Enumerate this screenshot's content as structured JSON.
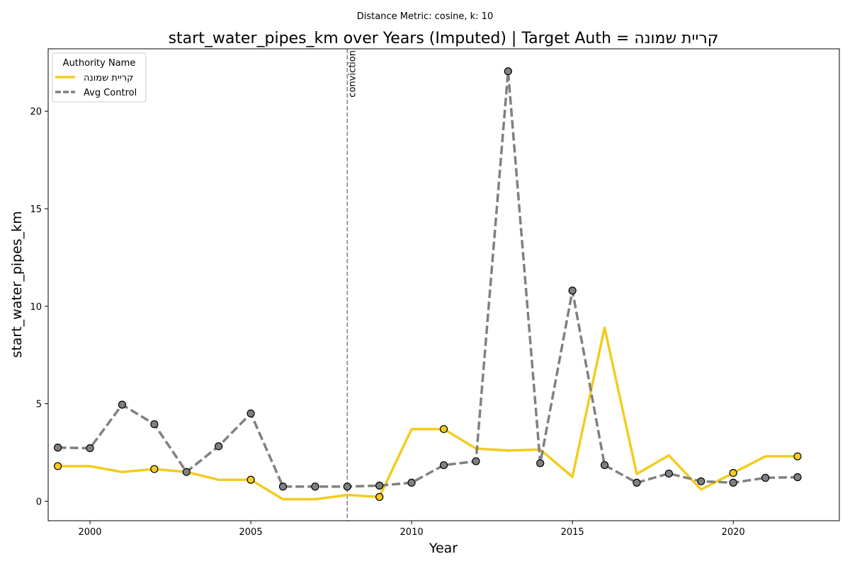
{
  "chart_data": {
    "type": "line",
    "suptitle": "Distance Metric: cosine, k: 10",
    "title": "start_water_pipes_km over Years (Imputed) | Target Auth = קריית שמונה",
    "xlabel": "Year",
    "ylabel": "start_water_pipes_km",
    "xlim": [
      1998.7,
      2023.3
    ],
    "ylim": [
      -1.0,
      23.2
    ],
    "x_ticks": [
      2000,
      2005,
      2010,
      2015,
      2020
    ],
    "y_ticks": [
      0,
      5,
      10,
      15,
      20
    ],
    "grid": false,
    "x": [
      1999,
      2000,
      2001,
      2002,
      2003,
      2004,
      2005,
      2006,
      2007,
      2008,
      2009,
      2010,
      2011,
      2012,
      2013,
      2014,
      2015,
      2016,
      2017,
      2018,
      2019,
      2020,
      2021,
      2022
    ],
    "series": [
      {
        "name": "קריית שמונה",
        "color": "#f2cc1f",
        "style": "solid",
        "values": [
          1.8,
          1.8,
          1.5,
          1.65,
          1.5,
          1.1,
          1.1,
          0.1,
          0.1,
          0.32,
          0.22,
          3.7,
          3.7,
          2.7,
          2.6,
          2.65,
          1.25,
          8.9,
          1.4,
          2.35,
          0.6,
          1.45,
          2.3,
          2.3
        ],
        "markers_at": [
          1999,
          2002,
          2005,
          2009,
          2011,
          2020,
          2022
        ]
      },
      {
        "name": "Avg Control",
        "color": "#808080",
        "style": "dashed",
        "values": [
          2.75,
          2.72,
          4.95,
          3.95,
          1.5,
          2.82,
          4.5,
          0.75,
          0.75,
          0.75,
          0.8,
          0.95,
          1.85,
          2.05,
          22.05,
          1.95,
          10.8,
          1.85,
          0.95,
          1.42,
          1.02,
          0.95,
          1.2,
          1.23
        ],
        "markers_at": [
          1999,
          2000,
          2001,
          2002,
          2003,
          2004,
          2005,
          2006,
          2007,
          2008,
          2009,
          2010,
          2011,
          2012,
          2013,
          2014,
          2015,
          2016,
          2017,
          2018,
          2019,
          2020,
          2021,
          2022
        ]
      }
    ],
    "vline": {
      "x": 2008,
      "label": "conviction",
      "color": "#808080"
    },
    "legend": {
      "title": "Authority Name",
      "placement": "top-left"
    },
    "marker_color": "#808080"
  }
}
